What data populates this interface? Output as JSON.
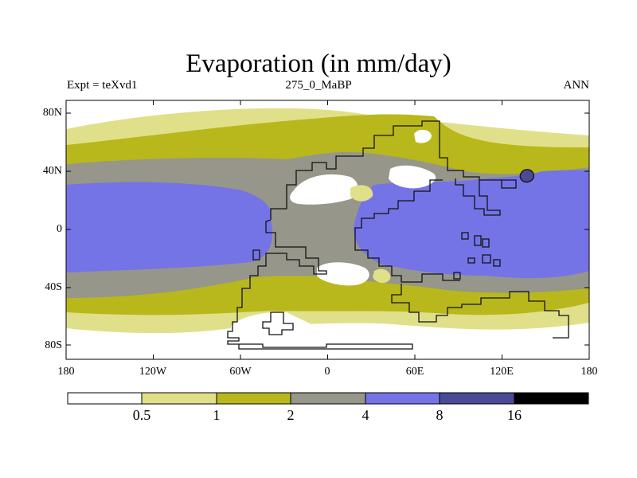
{
  "title": "Evaporation (in mm/day)",
  "subtitle_left": "Expt = teXvd1",
  "subtitle_center": "275_0_MaBP",
  "subtitle_right": "ANN",
  "map": {
    "projection": "cylindrical-equidistant",
    "lon_range": [
      -180,
      180
    ],
    "lat_range": [
      -90,
      90
    ],
    "lat_tick_labels": [
      "80N",
      "40N",
      "0",
      "40S",
      "80S"
    ],
    "lon_tick_labels": [
      "180",
      "120W",
      "60W",
      "0",
      "60E",
      "120E",
      "180"
    ],
    "features": [
      "Pangaea supercontinent outline",
      "evaporation shading"
    ]
  },
  "colorbar": {
    "labels": [
      "0.5",
      "1",
      "2",
      "4",
      "8",
      "16"
    ],
    "colors": [
      "#ffffff",
      "#e0e08a",
      "#b8b81c",
      "#96968a",
      "#7474e6",
      "#4a4a96",
      "#000000"
    ]
  }
}
